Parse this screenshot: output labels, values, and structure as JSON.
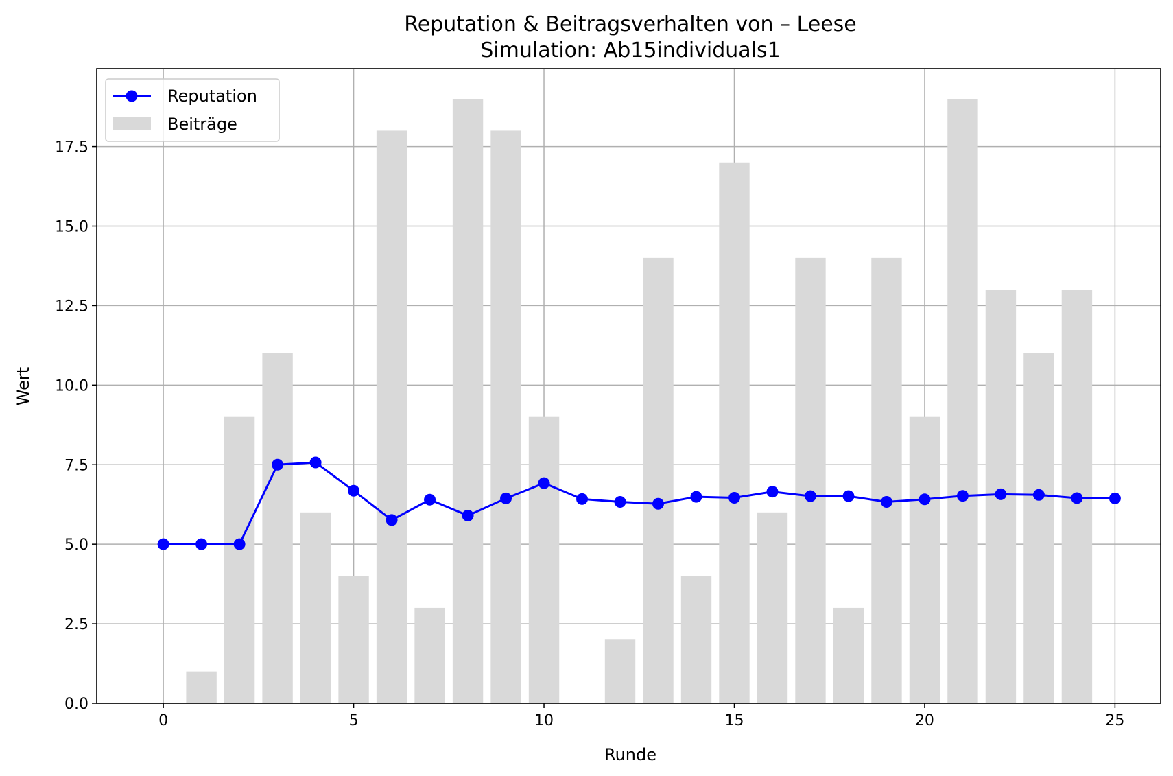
{
  "chart_data": {
    "type": "bar",
    "title": "Reputation & Beitragsverhalten von – Leese",
    "subtitle": "Simulation: Ab15individuals1",
    "xlabel": "Runde",
    "ylabel": "Wert",
    "xlim": [
      -1.75,
      26.2
    ],
    "ylim": [
      0,
      19.95
    ],
    "xticks": [
      0,
      5,
      10,
      15,
      20,
      25
    ],
    "yticks": [
      0.0,
      2.5,
      5.0,
      7.5,
      10.0,
      12.5,
      15.0,
      17.5
    ],
    "xtick_labels": [
      "0",
      "5",
      "10",
      "15",
      "20",
      "25"
    ],
    "ytick_labels": [
      "0.0",
      "2.5",
      "5.0",
      "7.5",
      "10.0",
      "12.5",
      "15.0",
      "17.5"
    ],
    "grid": true,
    "legend_position": "top-left",
    "series": [
      {
        "name": "Reputation",
        "kind": "line",
        "color": "#0000ff",
        "x": [
          0,
          1,
          2,
          3,
          4,
          5,
          6,
          7,
          8,
          9,
          10,
          11,
          12,
          13,
          14,
          15,
          16,
          17,
          18,
          19,
          20,
          21,
          22,
          23,
          24,
          25
        ],
        "values": [
          5.0,
          5.0,
          5.0,
          7.5,
          7.57,
          6.68,
          5.76,
          6.4,
          5.9,
          6.44,
          6.92,
          6.42,
          6.33,
          6.27,
          6.49,
          6.46,
          6.65,
          6.51,
          6.51,
          6.33,
          6.41,
          6.52,
          6.57,
          6.55,
          6.45,
          6.44
        ]
      },
      {
        "name": "Beiträge",
        "kind": "bar",
        "color": "#d9d9d9",
        "x": [
          1,
          2,
          3,
          4,
          5,
          6,
          7,
          8,
          9,
          10,
          12,
          13,
          14,
          15,
          16,
          17,
          18,
          19,
          20,
          21,
          22,
          23,
          24
        ],
        "values": [
          1,
          9,
          11,
          6,
          4,
          18,
          3,
          19,
          18,
          9,
          2,
          14,
          4,
          17,
          6,
          14,
          3,
          14,
          9,
          19,
          13,
          11,
          13
        ]
      }
    ]
  }
}
